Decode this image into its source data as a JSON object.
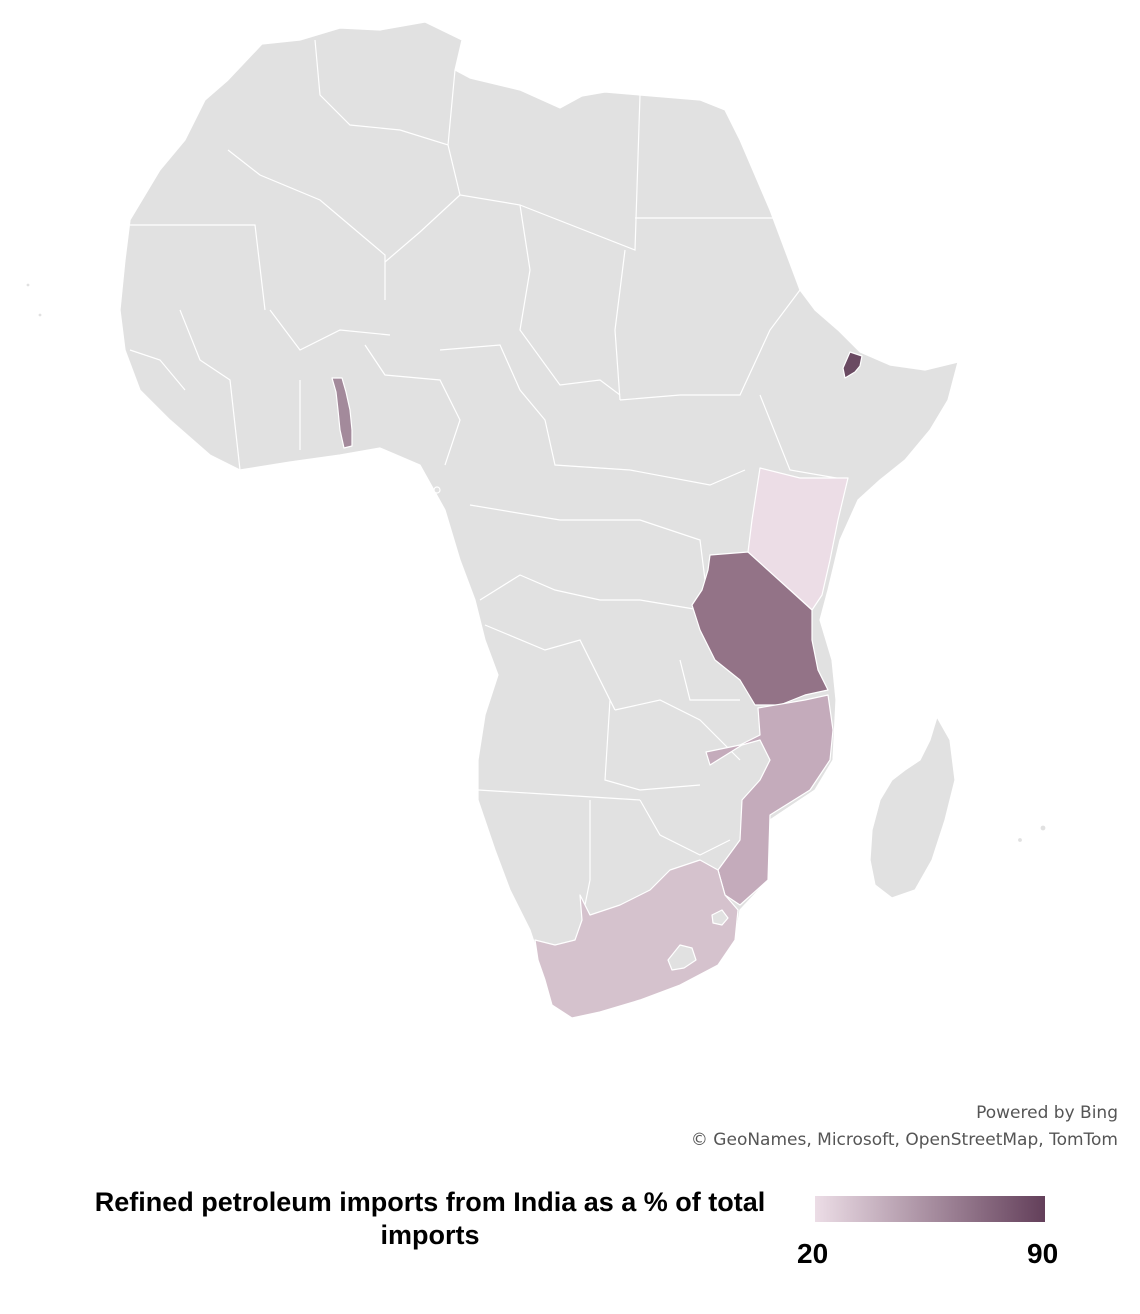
{
  "map": {
    "region": "Africa",
    "base_color": "#e1e1e1",
    "highlighted_countries": [
      {
        "name": "Djibouti",
        "value": 90,
        "color": "#6a4a62"
      },
      {
        "name": "Tanzania",
        "value": 72,
        "color": "#937387"
      },
      {
        "name": "Togo",
        "value": 60,
        "color": "#a38a9b"
      },
      {
        "name": "Mozambique",
        "value": 45,
        "color": "#c4abbb"
      },
      {
        "name": "South Africa",
        "value": 33,
        "color": "#d5c2cd"
      },
      {
        "name": "Kenya",
        "value": 22,
        "color": "#ecdde6"
      }
    ]
  },
  "attribution": {
    "line1": "Powered by Bing",
    "line2": "© GeoNames, Microsoft, OpenStreetMap, TomTom"
  },
  "legend": {
    "title": "Refined petroleum imports from India as a % of total imports",
    "min_label": "20",
    "max_label": "90",
    "min_color": "#ecdde6",
    "max_color": "#633f5a"
  }
}
